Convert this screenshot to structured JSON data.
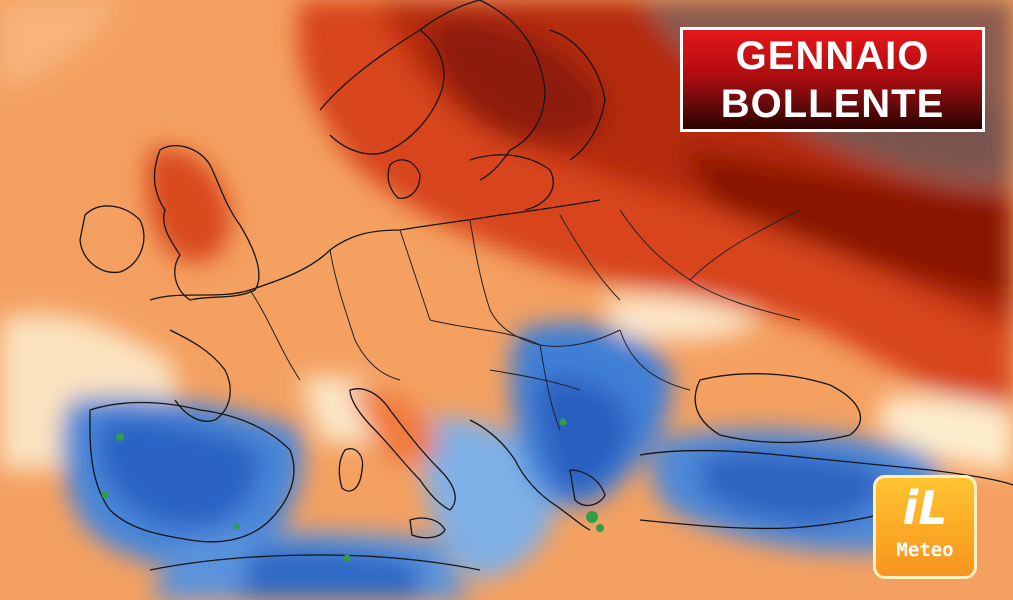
{
  "headline": {
    "line1": "GENNAIO",
    "line2": "BOLLENTE"
  },
  "logo": {
    "mark": "iL",
    "name": "Meteo",
    "accent": "#f7931e"
  },
  "map": {
    "subject": "temperature anomaly map of Europe",
    "warm_color": "#c2300f",
    "cold_color": "#2e6fd0",
    "neutral_color": "#fbeed0"
  }
}
